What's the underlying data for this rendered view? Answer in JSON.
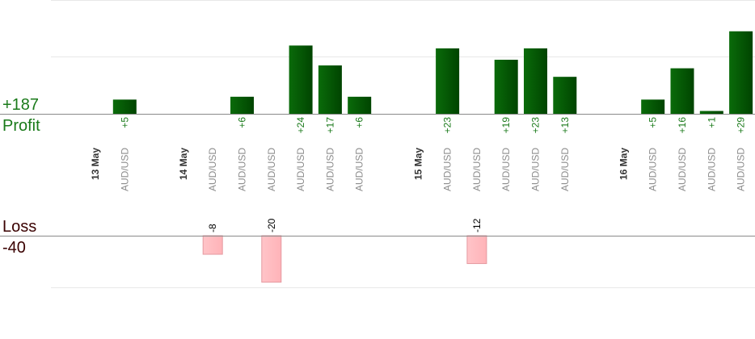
{
  "summary": {
    "profit_total": "+187",
    "profit_label": "Profit",
    "loss_label": "Loss",
    "loss_total": "-40"
  },
  "colors": {
    "profit_bar": "#0a6b0a",
    "profit_bar_dark": "#004400",
    "profit_text": "#1a7a1a",
    "loss_bar": "#ffb3b8",
    "loss_text": "#000000",
    "date_text": "#333333",
    "symbol_text": "#8c8c8c"
  },
  "chart_data": {
    "type": "bar",
    "profit_axis_max": 40,
    "loss_axis_max": 40,
    "columns": [
      {
        "kind": "date",
        "label": "13 May"
      },
      {
        "kind": "trade",
        "label": "AUD/USD",
        "value": 5,
        "value_label": "+5"
      },
      {
        "kind": "gap"
      },
      {
        "kind": "date",
        "label": "14 May"
      },
      {
        "kind": "trade",
        "label": "AUD/USD",
        "value": -8,
        "value_label": "-8"
      },
      {
        "kind": "trade",
        "label": "AUD/USD",
        "value": 6,
        "value_label": "+6"
      },
      {
        "kind": "trade",
        "label": "AUD/USD",
        "value": -20,
        "value_label": "-20"
      },
      {
        "kind": "trade",
        "label": "AUD/USD",
        "value": 24,
        "value_label": "+24"
      },
      {
        "kind": "trade",
        "label": "AUD/USD",
        "value": 17,
        "value_label": "+17"
      },
      {
        "kind": "trade",
        "label": "AUD/USD",
        "value": 6,
        "value_label": "+6"
      },
      {
        "kind": "gap"
      },
      {
        "kind": "date",
        "label": "15 May"
      },
      {
        "kind": "trade",
        "label": "AUD/USD",
        "value": 23,
        "value_label": "+23"
      },
      {
        "kind": "trade",
        "label": "AUD/USD",
        "value": -12,
        "value_label": "-12"
      },
      {
        "kind": "trade",
        "label": "AUD/USD",
        "value": 19,
        "value_label": "+19"
      },
      {
        "kind": "trade",
        "label": "AUD/USD",
        "value": 23,
        "value_label": "+23"
      },
      {
        "kind": "trade",
        "label": "AUD/USD",
        "value": 13,
        "value_label": "+13"
      },
      {
        "kind": "gap"
      },
      {
        "kind": "date",
        "label": "16 May"
      },
      {
        "kind": "trade",
        "label": "AUD/USD",
        "value": 5,
        "value_label": "+5"
      },
      {
        "kind": "trade",
        "label": "AUD/USD",
        "value": 16,
        "value_label": "+16"
      },
      {
        "kind": "trade",
        "label": "AUD/USD",
        "value": 1,
        "value_label": "+1"
      },
      {
        "kind": "trade",
        "label": "AUD/USD",
        "value": 29,
        "value_label": "+29"
      }
    ]
  }
}
